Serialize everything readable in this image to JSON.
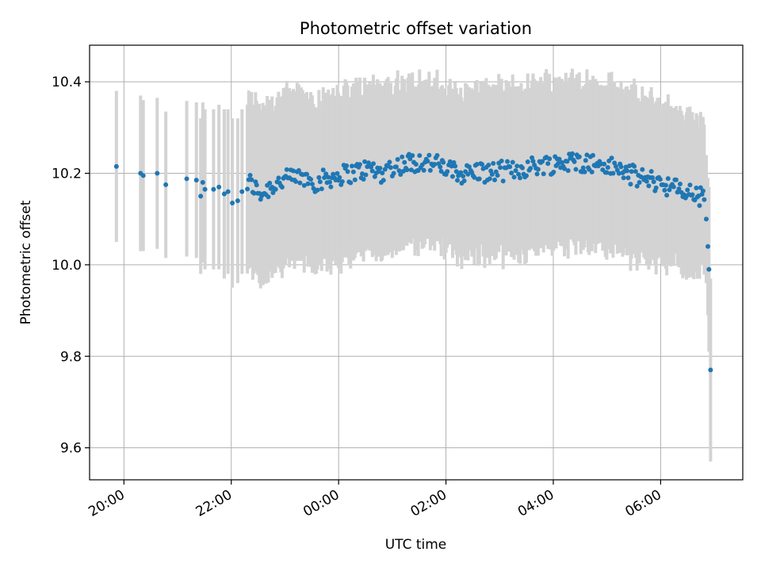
{
  "chart_data": {
    "type": "scatter",
    "title": "Photometric offset variation",
    "xlabel": "UTC time",
    "ylabel": "Photometric offset",
    "x_unit": "UTC hours (24+ = next day)",
    "xlim": [
      19.36,
      31.53
    ],
    "ylim": [
      9.53,
      10.48
    ],
    "x_ticks": [
      {
        "value": 20,
        "label": "20:00"
      },
      {
        "value": 22,
        "label": "22:00"
      },
      {
        "value": 24,
        "label": "00:00"
      },
      {
        "value": 26,
        "label": "02:00"
      },
      {
        "value": 28,
        "label": "04:00"
      },
      {
        "value": 30,
        "label": "06:00"
      }
    ],
    "y_ticks": [
      {
        "value": 9.6,
        "label": "9.6"
      },
      {
        "value": 9.8,
        "label": "9.8"
      },
      {
        "value": 10.0,
        "label": "10.0"
      },
      {
        "value": 10.2,
        "label": "10.2"
      },
      {
        "value": 10.4,
        "label": "10.4"
      }
    ],
    "grid": true,
    "colors": {
      "points": "#1f77b4",
      "errorbars": "#d3d3d3"
    },
    "anchors": {
      "x": [
        19.86,
        20.31,
        20.36,
        20.62,
        20.78,
        21.17,
        21.35,
        21.43,
        21.47,
        21.51,
        21.67,
        21.77,
        21.87,
        21.94,
        22.02,
        22.12,
        22.2,
        22.34,
        22.46,
        22.58,
        22.72,
        22.86,
        23.0,
        23.2,
        23.4,
        23.6,
        23.8,
        24.0,
        24.2,
        24.4,
        24.6,
        24.8,
        25.0,
        25.2,
        25.4,
        25.6,
        25.8,
        26.0,
        26.2,
        26.4,
        26.6,
        26.8,
        27.0,
        27.2,
        27.4,
        27.6,
        27.8,
        28.0,
        28.2,
        28.4,
        28.6,
        28.8,
        29.0,
        29.2,
        29.4,
        29.6,
        29.8,
        30.0,
        30.2,
        30.4,
        30.6,
        30.7,
        30.8,
        30.85,
        30.88,
        30.9,
        30.93
      ],
      "y": [
        10.215,
        10.2,
        10.195,
        10.2,
        10.175,
        10.188,
        10.185,
        10.15,
        10.18,
        10.165,
        10.165,
        10.17,
        10.155,
        10.16,
        10.135,
        10.14,
        10.16,
        10.18,
        10.165,
        10.155,
        10.17,
        10.18,
        10.185,
        10.19,
        10.19,
        10.18,
        10.19,
        10.195,
        10.2,
        10.205,
        10.21,
        10.2,
        10.215,
        10.22,
        10.225,
        10.225,
        10.22,
        10.21,
        10.2,
        10.2,
        10.205,
        10.2,
        10.205,
        10.205,
        10.21,
        10.215,
        10.22,
        10.22,
        10.225,
        10.225,
        10.225,
        10.22,
        10.215,
        10.21,
        10.2,
        10.19,
        10.185,
        10.18,
        10.17,
        10.16,
        10.155,
        10.15,
        10.145,
        10.1,
        10.04,
        9.99,
        9.77
      ],
      "err": [
        0.165,
        0.17,
        0.165,
        0.165,
        0.16,
        0.17,
        0.17,
        0.17,
        0.175,
        0.175,
        0.175,
        0.18,
        0.185,
        0.18,
        0.185,
        0.18,
        0.18,
        0.18,
        0.185,
        0.185,
        0.185,
        0.185,
        0.185,
        0.185,
        0.185,
        0.185,
        0.185,
        0.18,
        0.18,
        0.18,
        0.18,
        0.18,
        0.18,
        0.18,
        0.175,
        0.175,
        0.175,
        0.175,
        0.175,
        0.18,
        0.18,
        0.18,
        0.18,
        0.18,
        0.18,
        0.18,
        0.18,
        0.18,
        0.18,
        0.18,
        0.18,
        0.18,
        0.18,
        0.18,
        0.18,
        0.175,
        0.175,
        0.175,
        0.17,
        0.17,
        0.17,
        0.165,
        0.16,
        0.14,
        0.15,
        0.18,
        0.2
      ]
    }
  }
}
